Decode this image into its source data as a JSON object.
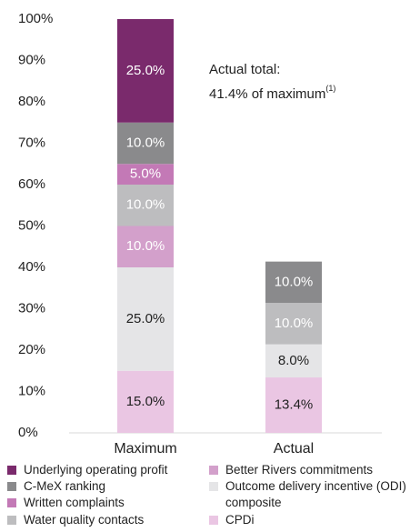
{
  "chart_data": {
    "type": "stacked_bar",
    "categories": [
      "Maximum",
      "Actual"
    ],
    "series": [
      {
        "name": "CPDi",
        "color": "#eac6e3",
        "values": [
          15.0,
          13.4
        ],
        "value_labels": [
          "15.0%",
          "13.4%"
        ]
      },
      {
        "name": "Outcome delivery incentive (ODI) composite",
        "color": "#e5e5e7",
        "values": [
          25.0,
          8.0
        ],
        "value_labels": [
          "25.0%",
          "8.0%"
        ]
      },
      {
        "name": "Better Rivers commitments",
        "color": "#d3a0cb",
        "values": [
          10.0,
          null
        ],
        "value_labels": [
          "10.0%",
          null
        ]
      },
      {
        "name": "Water quality contacts",
        "color": "#bdbdbf",
        "values": [
          10.0,
          10.0
        ],
        "value_labels": [
          "10.0%",
          "10.0%"
        ]
      },
      {
        "name": "Written complaints",
        "color": "#c379b6",
        "values": [
          5.0,
          null
        ],
        "value_labels": [
          "5.0%",
          null
        ]
      },
      {
        "name": "C-MeX ranking",
        "color": "#8a8a8c",
        "values": [
          10.0,
          10.0
        ],
        "value_labels": [
          "10.0%",
          "10.0%"
        ]
      },
      {
        "name": "Underlying operating profit",
        "color": "#7a2a6c",
        "values": [
          25.0,
          null
        ],
        "value_labels": [
          "25.0%",
          null
        ]
      }
    ],
    "ylim": [
      0,
      100
    ],
    "yticks": [
      {
        "value": 0,
        "label": "0%"
      },
      {
        "value": 10,
        "label": "10%"
      },
      {
        "value": 20,
        "label": "20%"
      },
      {
        "value": 30,
        "label": "30%"
      },
      {
        "value": 40,
        "label": "40%"
      },
      {
        "value": 50,
        "label": "50%"
      },
      {
        "value": 60,
        "label": "60%"
      },
      {
        "value": 70,
        "label": "70%"
      },
      {
        "value": 80,
        "label": "80%"
      },
      {
        "value": 90,
        "label": "90%"
      },
      {
        "value": 100,
        "label": "100%"
      }
    ],
    "annotation": {
      "lines": [
        "Actual total:",
        "41.4% of maximum"
      ],
      "footnote_mark": "(1)"
    },
    "grid": false
  }
}
